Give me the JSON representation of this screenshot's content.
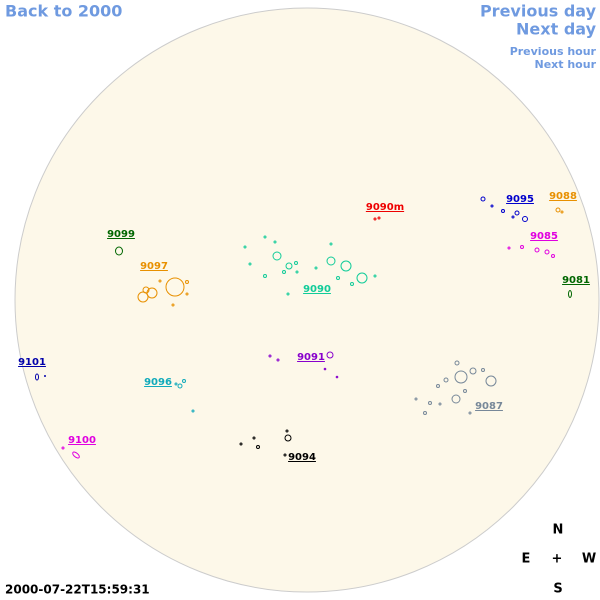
{
  "nav": {
    "back": "Back to 2000",
    "previous_day": "Previous day",
    "next_day": "Next day",
    "previous_hour": "Previous hour",
    "next_hour": "Next hour"
  },
  "regions": [
    "9090m",
    "9095",
    "9088",
    "9099",
    "9085",
    "9097",
    "9090",
    "9081",
    "9101",
    "9091",
    "9096",
    "9087",
    "9100",
    "9094"
  ],
  "compass": {
    "north": "N",
    "east": "E",
    "center": "+",
    "west": "W",
    "south": "S"
  },
  "timestamp": "2000-07-22T15:59:31"
}
